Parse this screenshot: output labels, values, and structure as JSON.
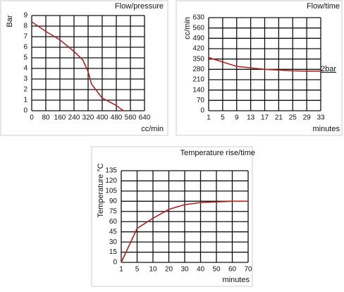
{
  "chart_data": [
    {
      "type": "line",
      "title": "Flow/pressure",
      "xlabel": "cc/min",
      "ylabel": "Bar",
      "x": [
        0,
        80,
        160,
        240,
        290,
        320,
        340,
        400,
        480,
        520
      ],
      "series": [
        {
          "color": "#b22222",
          "values": [
            8.4,
            7.5,
            6.7,
            5.6,
            4.8,
            3.7,
            2.5,
            1.2,
            0.5,
            0
          ]
        }
      ],
      "xlim": [
        0,
        640
      ],
      "xticks": [
        0,
        80,
        160,
        240,
        320,
        400,
        480,
        560,
        640
      ],
      "ylim": [
        0,
        9
      ],
      "yticks": [
        0,
        1,
        2,
        3,
        4,
        5,
        6,
        7,
        8,
        9
      ],
      "grid": true
    },
    {
      "type": "line",
      "title": "Flow/time",
      "xlabel": "minutes",
      "ylabel": "cc/min",
      "annotation": "2bar",
      "x": [
        1,
        5,
        9,
        13,
        17,
        21,
        25,
        29,
        33
      ],
      "series": [
        {
          "color": "#b22222",
          "values": [
            360,
            330,
            300,
            290,
            280,
            275,
            270,
            268,
            268
          ]
        }
      ],
      "xlim": [
        1,
        33
      ],
      "xticks": [
        1,
        5,
        9,
        13,
        17,
        21,
        25,
        29,
        33
      ],
      "ylim": [
        0,
        630
      ],
      "yticks": [
        0,
        70,
        140,
        210,
        280,
        350,
        420,
        490,
        560,
        630
      ],
      "grid": true
    },
    {
      "type": "line",
      "title": "Temperature rise/time",
      "xlabel": "minutes",
      "ylabel": "Temperature °C",
      "categories": [
        "1",
        "5",
        "10",
        "20",
        "30",
        "40",
        "50",
        "60",
        "70"
      ],
      "series": [
        {
          "color": "#b22222",
          "values": [
            0,
            50,
            65,
            78,
            85,
            88,
            89,
            90,
            90
          ]
        }
      ],
      "ylim": [
        0,
        135
      ],
      "yticks": [
        0,
        15,
        30,
        45,
        60,
        75,
        90,
        105,
        120,
        135
      ],
      "grid": true
    }
  ]
}
